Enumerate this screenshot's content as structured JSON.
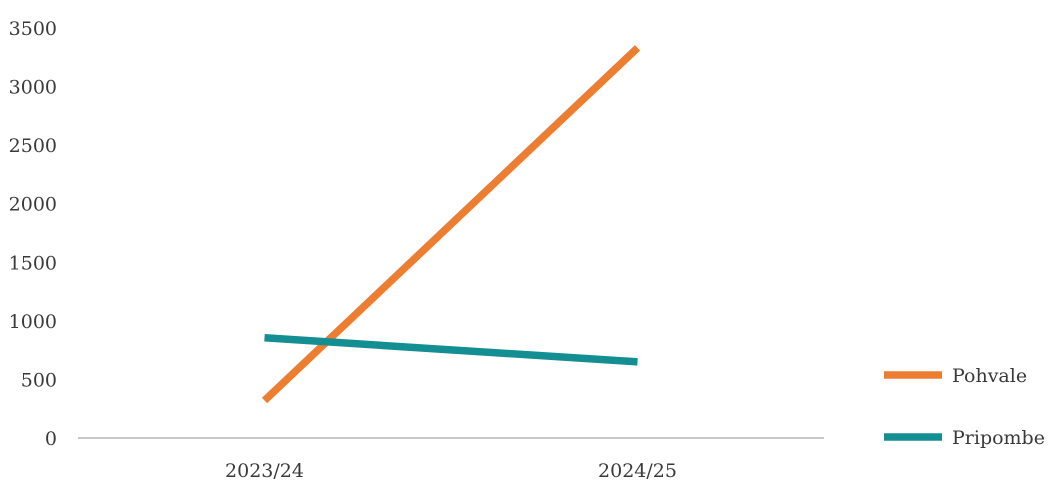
{
  "chart_data": {
    "type": "line",
    "categories": [
      "2023/24",
      "2024/25"
    ],
    "series": [
      {
        "name": "Pohvale",
        "values": [
          320,
          3330
        ],
        "color": "#ED7D31"
      },
      {
        "name": "Pripombe",
        "values": [
          855,
          650
        ],
        "color": "#138E92"
      }
    ],
    "yticks": [
      0,
      500,
      1000,
      1500,
      2000,
      2500,
      3000,
      3500
    ],
    "ylim": [
      0,
      3500
    ],
    "legend_position": "right",
    "grid": false,
    "axis_color": "#A6A6A6"
  }
}
